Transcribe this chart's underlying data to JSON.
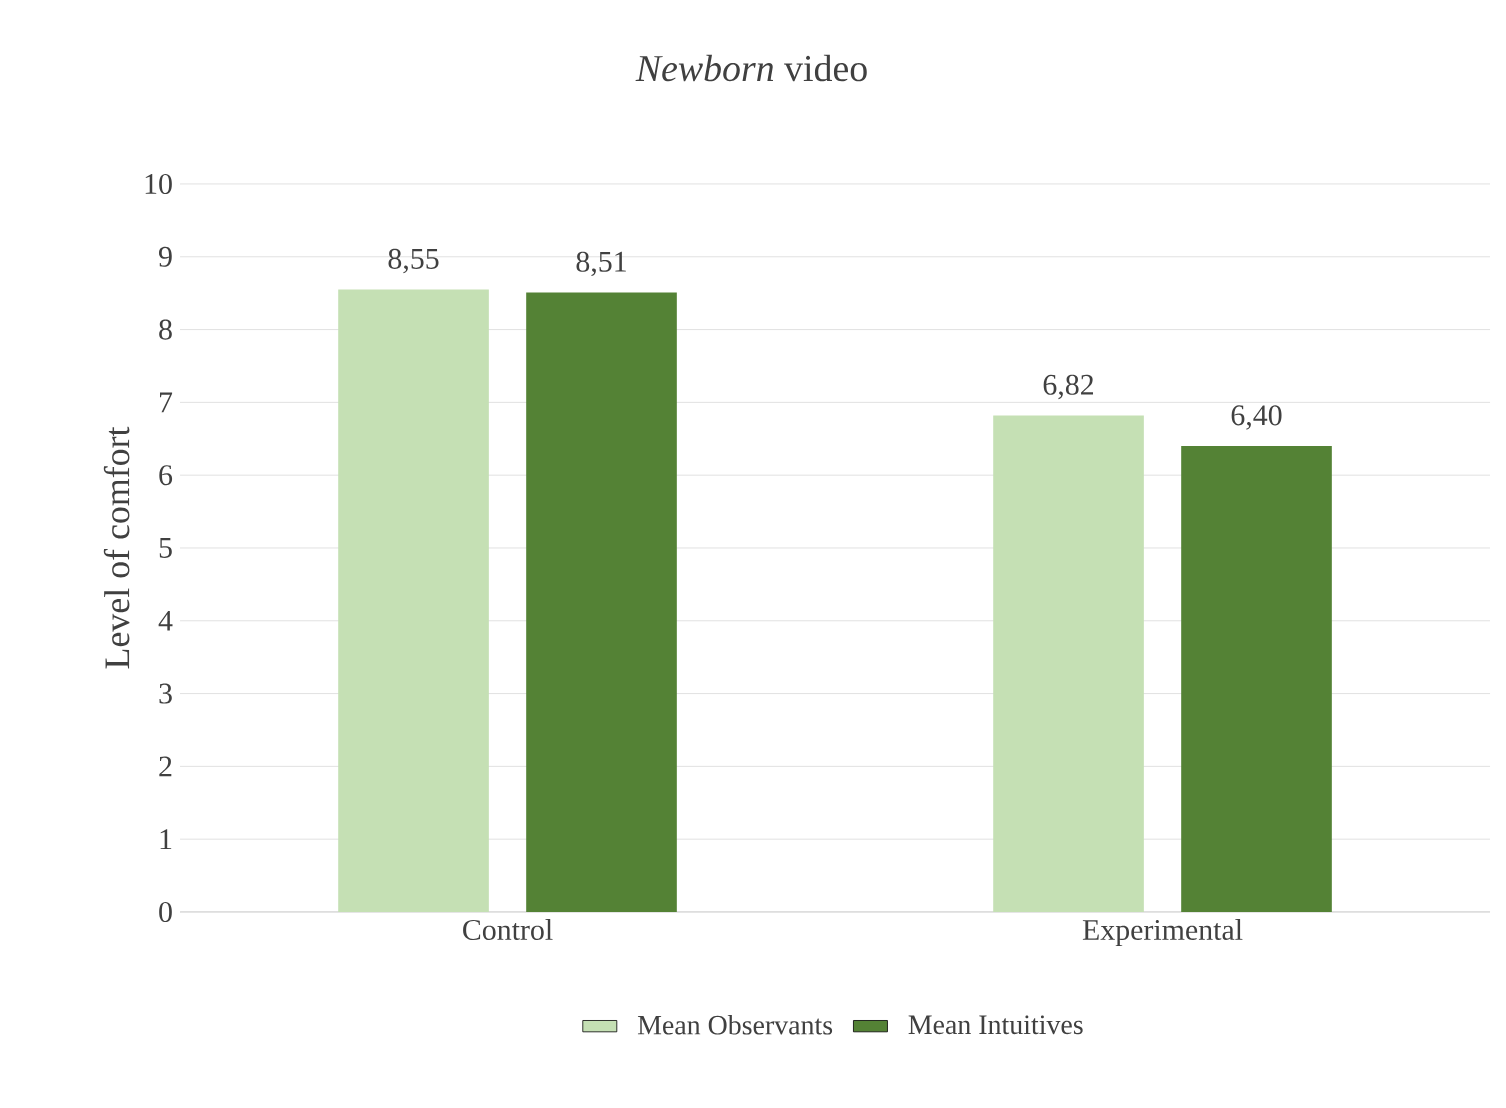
{
  "chart_data": {
    "type": "bar",
    "title": "*Newborn* video",
    "ylabel": "Level of comfort",
    "categories": [
      "Control",
      "Experimental"
    ],
    "series": [
      {
        "name": "Mean Observants",
        "color": "#c5e0b4",
        "values": [
          8.55,
          6.82
        ],
        "value_labels": [
          "8,55",
          "6,82"
        ]
      },
      {
        "name": "Mean Intuitives",
        "color": "#548235",
        "values": [
          8.51,
          6.4
        ],
        "value_labels": [
          "8,51",
          "6,40"
        ]
      }
    ],
    "ylim": [
      0,
      10
    ],
    "yticks": [
      0,
      1,
      2,
      3,
      4,
      5,
      6,
      7,
      8,
      9,
      10
    ],
    "grid": "y",
    "legend": "bottom"
  }
}
